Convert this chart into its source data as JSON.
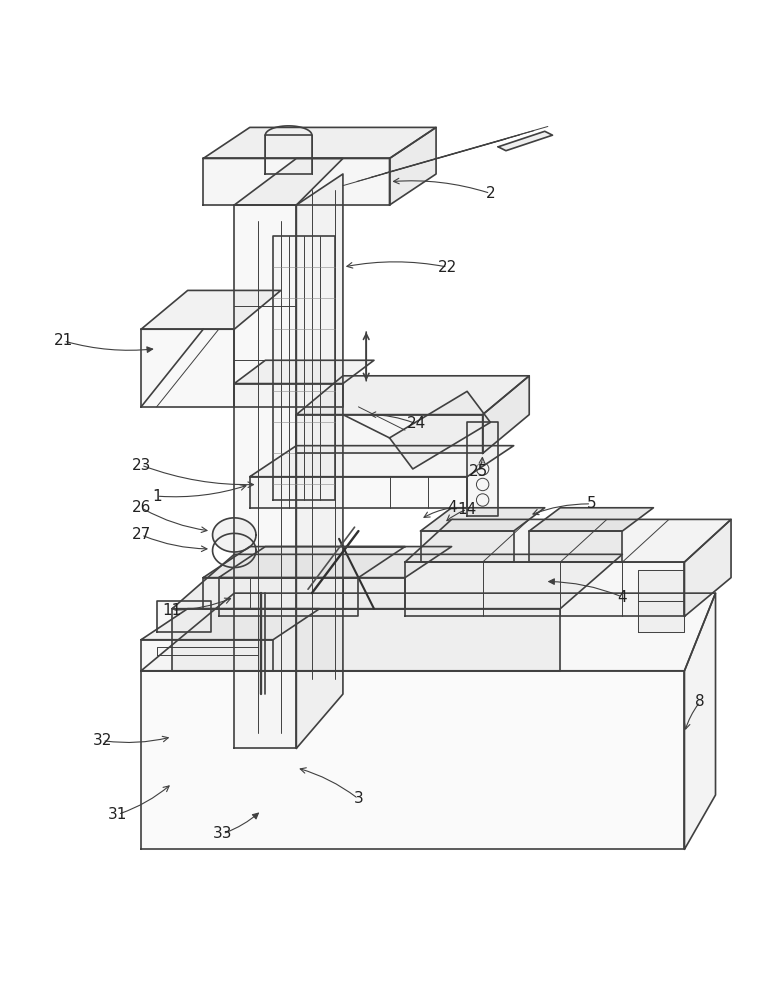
{
  "bg_color": "#ffffff",
  "line_color": "#404040",
  "line_width": 1.2,
  "thin_line": 0.7,
  "label_color": "#222222",
  "label_fontsize": 11,
  "fig_width": 7.79,
  "fig_height": 10.0
}
